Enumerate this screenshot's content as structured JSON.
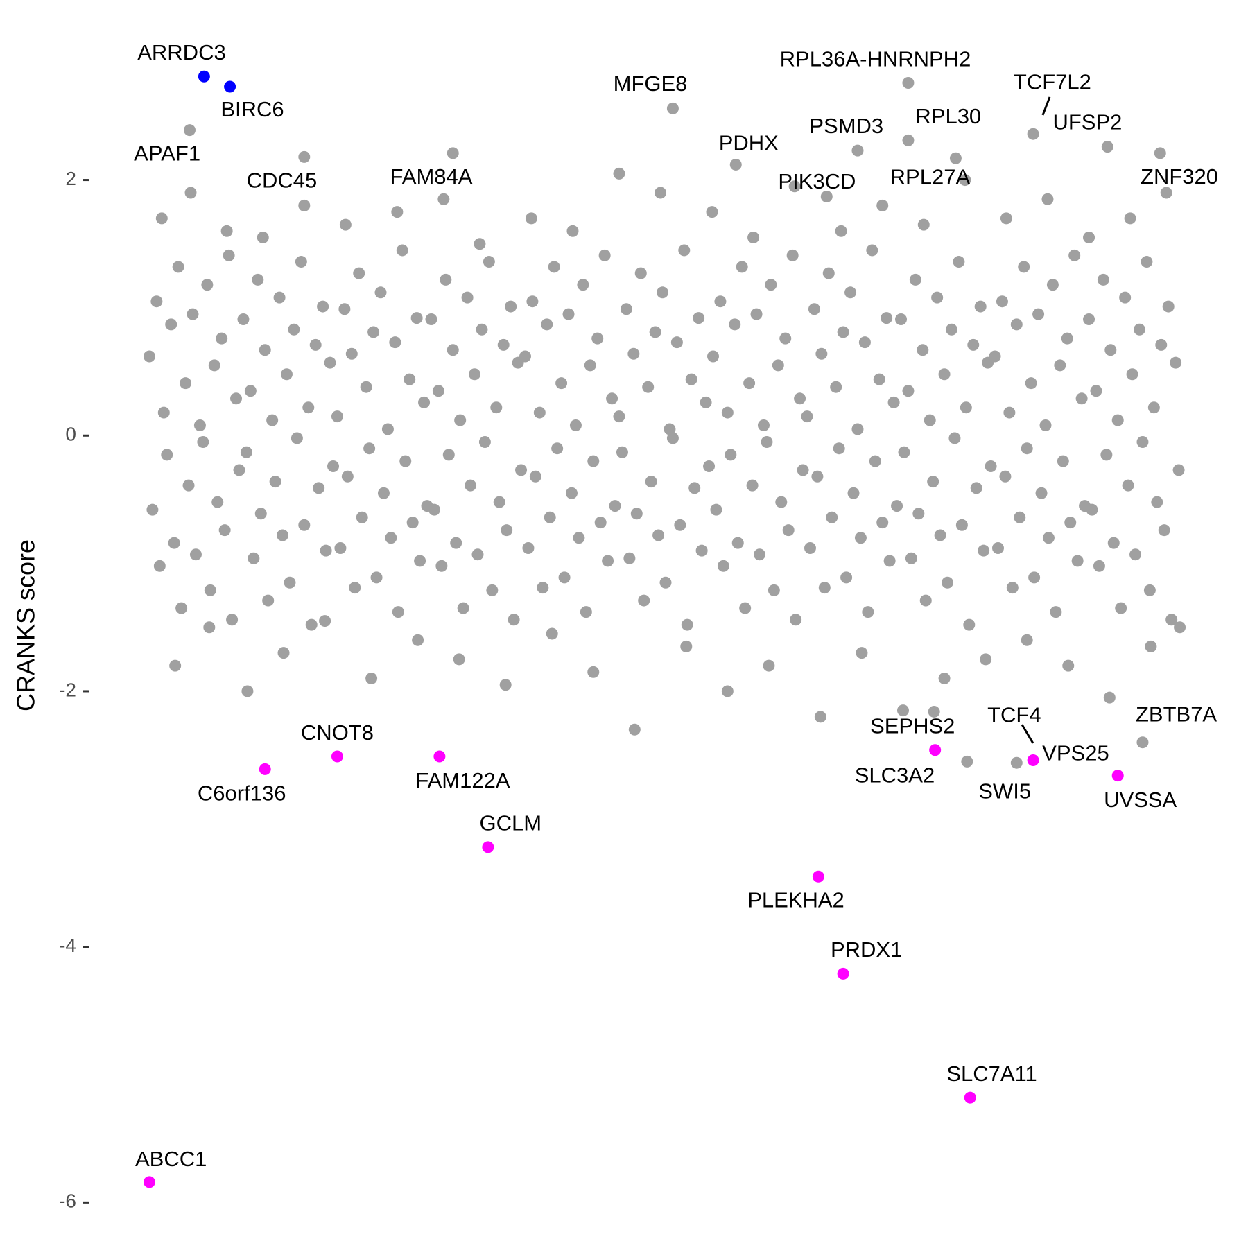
{
  "chart_data": {
    "type": "scatter",
    "ylabel": "CRANKS score",
    "xlim": [
      -5,
      1005
    ],
    "ylim": [
      -6.15,
      3.05
    ],
    "yticks": [
      -6,
      -4,
      -2,
      0,
      2
    ],
    "series": [
      {
        "color": "#a0a0a0",
        "x": [
          0,
          7,
          14,
          21,
          28,
          35,
          42,
          49,
          56,
          63,
          70,
          77,
          84,
          91,
          98,
          105,
          112,
          119,
          126,
          133,
          140,
          147,
          154,
          161,
          168,
          175,
          182,
          189,
          196,
          203,
          210,
          217,
          224,
          231,
          238,
          245,
          252,
          259,
          266,
          273,
          280,
          287,
          294,
          301,
          308,
          315,
          322,
          329,
          336,
          343,
          350,
          357,
          364,
          371,
          378,
          385,
          392,
          399,
          406,
          413,
          420,
          427,
          434,
          441,
          448,
          455,
          462,
          469,
          476,
          483,
          490,
          497,
          504,
          511,
          518,
          525,
          532,
          539,
          546,
          553,
          560,
          567,
          574,
          581,
          588,
          595,
          602,
          609,
          616,
          623,
          630,
          637,
          644,
          651,
          658,
          665,
          672,
          679,
          686,
          693,
          700,
          707,
          714,
          721,
          728,
          735,
          742,
          749,
          756,
          763,
          770,
          777,
          784,
          791,
          798,
          805,
          812,
          819,
          826,
          833,
          840,
          847,
          854,
          861,
          868,
          875,
          882,
          889,
          896,
          903,
          910,
          917,
          924,
          931,
          938,
          945,
          952,
          959,
          966,
          973,
          980,
          987,
          994
        ],
        "values": [
          0.62,
          1.05,
          0.18,
          0.87,
          1.32,
          0.41,
          0.95,
          0.08,
          1.18,
          0.55,
          0.76,
          1.41,
          0.29,
          0.91,
          0.35,
          1.22,
          0.67,
          0.12,
          1.08,
          0.48,
          0.83,
          1.36,
          0.22,
          0.71,
          1.01,
          0.57,
          0.15,
          0.99,
          0.64,
          1.27,
          0.38,
          0.81,
          1.12,
          0.05,
          0.73,
          1.45,
          0.44,
          0.92,
          0.26,
          0.91,
          0.35,
          1.22,
          0.67,
          0.12,
          1.08,
          0.48,
          0.83,
          1.36,
          0.22,
          0.71,
          1.01,
          0.57,
          0.62,
          1.05,
          0.18,
          0.87,
          1.32,
          0.41,
          0.95,
          0.08,
          1.18,
          0.55,
          0.76,
          1.41,
          0.29,
          0.15,
          0.99,
          0.64,
          1.27,
          0.38,
          0.81,
          1.12,
          0.05,
          0.73,
          1.45,
          0.44,
          0.92,
          0.26,
          0.62,
          1.05,
          0.18,
          0.87,
          1.32,
          0.41,
          0.95,
          0.08,
          1.18,
          0.55,
          0.76,
          1.41,
          0.29,
          0.15,
          0.99,
          0.64,
          1.27,
          0.38,
          0.81,
          1.12,
          0.05,
          0.73,
          1.45,
          0.44,
          0.92,
          0.26,
          0.91,
          0.35,
          1.22,
          0.67,
          0.12,
          1.08,
          0.48,
          0.83,
          1.36,
          0.22,
          0.71,
          1.01,
          0.57,
          0.62,
          1.05,
          0.18,
          0.87,
          1.32,
          0.41,
          0.95,
          0.08,
          1.18,
          0.55,
          0.76,
          1.41,
          0.29,
          0.91,
          0.35,
          1.22,
          0.67,
          0.12,
          1.08,
          0.48,
          0.83,
          1.36,
          0.22,
          0.71,
          1.01,
          0.57
        ]
      },
      {
        "color": "#a0a0a0",
        "x": [
          3,
          10,
          17,
          24,
          31,
          38,
          45,
          52,
          59,
          66,
          73,
          80,
          87,
          94,
          101,
          108,
          115,
          122,
          129,
          136,
          143,
          150,
          157,
          164,
          171,
          178,
          185,
          192,
          199,
          206,
          213,
          220,
          227,
          234,
          241,
          248,
          255,
          262,
          269,
          276,
          283,
          290,
          297,
          304,
          311,
          318,
          325,
          332,
          339,
          346,
          353,
          360,
          367,
          374,
          381,
          388,
          395,
          402,
          409,
          416,
          423,
          430,
          437,
          444,
          451,
          458,
          465,
          472,
          479,
          486,
          493,
          500,
          507,
          514,
          521,
          528,
          535,
          542,
          549,
          556,
          563,
          570,
          577,
          584,
          591,
          598,
          605,
          612,
          619,
          626,
          633,
          640,
          647,
          654,
          661,
          668,
          675,
          682,
          689,
          696,
          703,
          710,
          717,
          724,
          731,
          738,
          745,
          752,
          759,
          766,
          773,
          780,
          787,
          794,
          801,
          808,
          815,
          822,
          829,
          836,
          843,
          850,
          857,
          864,
          871,
          878,
          885,
          892,
          899,
          906,
          913,
          920,
          927,
          934,
          941,
          948,
          955,
          962,
          969,
          976,
          983,
          990,
          997
        ],
        "values": [
          -0.58,
          -1.02,
          -0.15,
          -0.84,
          -1.35,
          -0.39,
          -0.93,
          -0.05,
          -1.21,
          -0.52,
          -0.74,
          -1.44,
          -0.27,
          -0.13,
          -0.96,
          -0.61,
          -1.29,
          -0.36,
          -0.78,
          -1.15,
          -0.02,
          -0.7,
          -1.48,
          -0.41,
          -0.9,
          -0.24,
          -0.88,
          -0.32,
          -1.19,
          -0.64,
          -0.1,
          -1.11,
          -0.45,
          -0.8,
          -1.38,
          -0.2,
          -0.68,
          -0.98,
          -0.55,
          -0.58,
          -1.02,
          -0.15,
          -0.84,
          -1.35,
          -0.39,
          -0.93,
          -0.05,
          -1.21,
          -0.52,
          -0.74,
          -1.44,
          -0.27,
          -0.88,
          -0.32,
          -1.19,
          -0.64,
          -0.1,
          -1.11,
          -0.45,
          -0.8,
          -1.38,
          -0.2,
          -0.68,
          -0.98,
          -0.55,
          -0.13,
          -0.96,
          -0.61,
          -1.29,
          -0.36,
          -0.78,
          -1.15,
          -0.02,
          -0.7,
          -1.48,
          -0.41,
          -0.9,
          -0.24,
          -0.58,
          -1.02,
          -0.15,
          -0.84,
          -1.35,
          -0.39,
          -0.93,
          -0.05,
          -1.21,
          -0.52,
          -0.74,
          -1.44,
          -0.27,
          -0.88,
          -0.32,
          -1.19,
          -0.64,
          -0.1,
          -1.11,
          -0.45,
          -0.8,
          -1.38,
          -0.2,
          -0.68,
          -0.98,
          -0.55,
          -0.13,
          -0.96,
          -0.61,
          -1.29,
          -0.36,
          -0.78,
          -1.15,
          -0.02,
          -0.7,
          -1.48,
          -0.41,
          -0.9,
          -0.24,
          -0.88,
          -0.32,
          -1.19,
          -0.64,
          -0.1,
          -1.11,
          -0.45,
          -0.8,
          -1.38,
          -0.2,
          -0.68,
          -0.98,
          -0.55,
          -0.58,
          -1.02,
          -0.15,
          -0.84,
          -1.35,
          -0.39,
          -0.93,
          -0.05,
          -1.21,
          -0.52,
          -0.74,
          -1.44,
          -0.27
        ]
      },
      {
        "color": "#a0a0a0",
        "x": [
          12,
          25,
          40,
          58,
          75,
          95,
          110,
          130,
          150,
          170,
          190,
          215,
          240,
          260,
          285,
          300,
          320,
          345,
          370,
          390,
          410,
          430,
          455,
          470,
          495,
          520,
          545,
          560,
          585,
          600,
          625,
          650,
          670,
          690,
          710,
          730,
          750,
          770,
          790,
          810,
          830,
          850,
          870,
          890,
          910,
          930,
          950,
          970,
          985,
          998
        ],
        "values": [
          1.7,
          -1.8,
          1.9,
          -1.5,
          1.6,
          -2.0,
          1.55,
          -1.7,
          1.8,
          -1.45,
          1.65,
          -1.9,
          1.75,
          -1.6,
          1.85,
          -1.75,
          1.5,
          -1.95,
          1.7,
          -1.55,
          1.6,
          -1.85,
          2.05,
          -2.3,
          1.9,
          -1.65,
          1.75,
          -2.0,
          1.55,
          -1.8,
          1.95,
          -2.2,
          1.6,
          -1.7,
          1.8,
          -2.15,
          1.65,
          -1.9,
          2.0,
          -1.75,
          1.7,
          -1.6,
          1.85,
          -1.8,
          1.55,
          -2.05,
          1.7,
          -1.65,
          1.9,
          -1.5
        ]
      },
      {
        "color": "#a0a0a0",
        "x": [
          39,
          150,
          294,
          507,
          568,
          686,
          656,
          735,
          735,
          781,
          856,
          928,
          979,
          760,
          840,
          792,
          962
        ],
        "values": [
          2.39,
          2.18,
          2.21,
          2.56,
          2.12,
          2.23,
          1.87,
          2.76,
          2.31,
          2.17,
          2.36,
          2.26,
          2.21,
          -2.16,
          -2.56,
          -2.55,
          -2.4
        ],
        "labels": [
          "APAF1",
          "CDC45",
          "FAM84A",
          "MFGE8",
          "PDHX",
          "PSMD3",
          "PIK3CD",
          "RPL36A-HNRNPH2",
          "RPL30",
          "RPL27A",
          "TCF7L2",
          "UFSP2",
          "ZNF320",
          "SLC3A2",
          "TCF4",
          "SWI5",
          "ZBTB7A"
        ]
      },
      {
        "color": "#ff00ff",
        "x": [
          182,
          112,
          281,
          328,
          648,
          672,
          795,
          0,
          761,
          856,
          938
        ],
        "values": [
          -2.51,
          -2.61,
          -2.51,
          -3.22,
          -3.45,
          -4.21,
          -5.18,
          -5.84,
          -2.46,
          -2.54,
          -2.66
        ],
        "labels": [
          "CNOT8",
          "C6orf136",
          "FAM122A",
          "GCLM",
          "PLEKHA2",
          "PRDX1",
          "SLC7A11",
          "ABCC1",
          "SEPHS2",
          "VPS25",
          "UVSSA"
        ]
      },
      {
        "color": "#0000ff",
        "x": [
          53,
          78
        ],
        "values": [
          2.81,
          2.73
        ],
        "labels": [
          "ARRDC3",
          "BIRC6"
        ]
      }
    ]
  }
}
